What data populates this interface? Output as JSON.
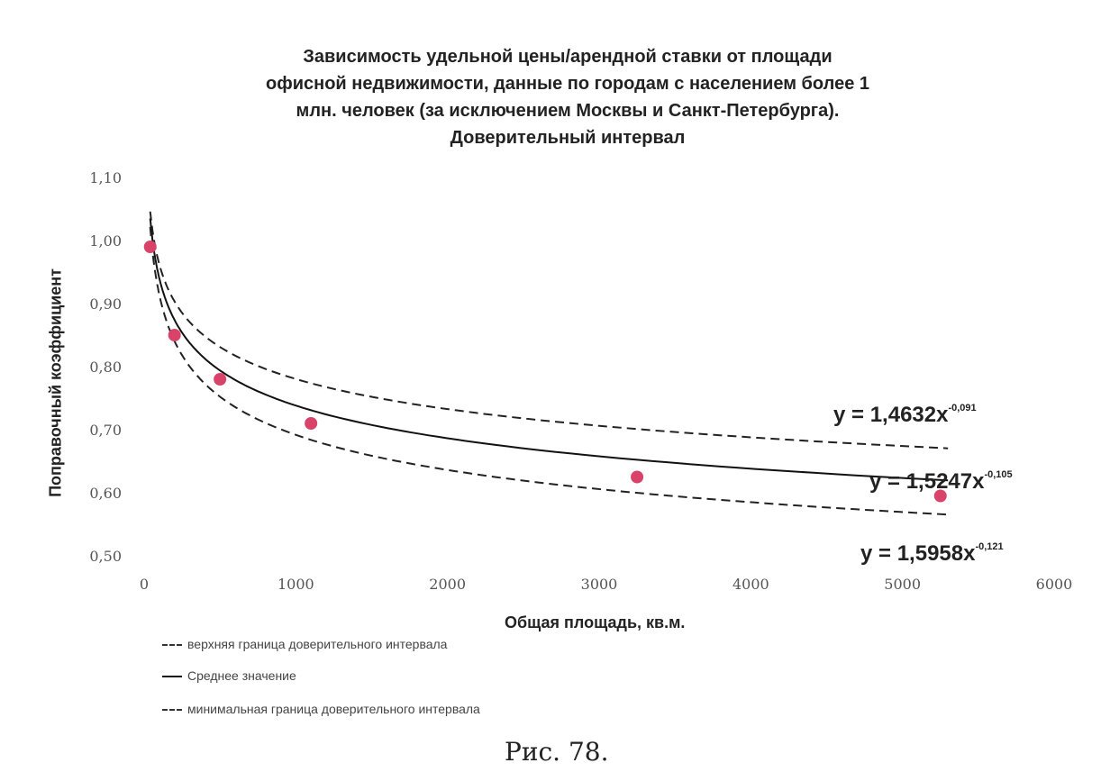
{
  "chart_data": {
    "type": "scatter",
    "title_lines": [
      "Зависимость удельной цены/арендной ставки от площади",
      "офисной недвижимости, данные по городам с населением более 1",
      "млн. человек (за исключением Москвы и Санкт-Петербурга).",
      "Доверительный интервал"
    ],
    "xlabel": "Общая площадь, кв.м.",
    "ylabel": "Поправочный коэффициент",
    "xlim": [
      0,
      6000
    ],
    "ylim": [
      0.5,
      1.1
    ],
    "x_ticks": [
      "0",
      "1000",
      "2000",
      "3000",
      "4000",
      "5000",
      "6000"
    ],
    "y_ticks": [
      "0,50",
      "0,60",
      "0,70",
      "0,80",
      "0,90",
      "1,00",
      "1,10"
    ],
    "series": [
      {
        "name": "верхняя граница доверительного интервала",
        "style": "dashed",
        "color": "#222222",
        "x_range": [
          40,
          5300
        ],
        "equation": "y = 1,4632x^-0,091",
        "coef": 1.4632,
        "exponent": -0.091
      },
      {
        "name": "Среднее значение",
        "style": "solid",
        "color": "#111111",
        "x_range": [
          40,
          5300
        ],
        "equation": "y = 1,5247x^-0,105",
        "coef": 1.5247,
        "exponent": -0.105
      },
      {
        "name": "минимальная граница доверительного интервала",
        "style": "dashed",
        "color": "#222222",
        "x_range": [
          40,
          5300
        ],
        "equation": "y = 1,5958x^-0,121",
        "coef": 1.5958,
        "exponent": -0.121
      }
    ],
    "points": {
      "color": "#d9436a",
      "x": [
        40,
        200,
        500,
        1100,
        3250,
        5250
      ],
      "y": [
        0.99,
        0.85,
        0.78,
        0.71,
        0.625,
        0.595
      ]
    },
    "equations": {
      "upper": "y = 1,4632x",
      "upper_exp": "-0,091",
      "mean": "y = 1,5247x",
      "mean_exp": "-0,105",
      "lower": "y = 1,5958x",
      "lower_exp": "-0,121"
    },
    "legend": [
      "верхняя граница доверительного интервала",
      "Среднее значение",
      "минимальная граница доверительного интервала"
    ]
  },
  "caption": "Рис. 78."
}
